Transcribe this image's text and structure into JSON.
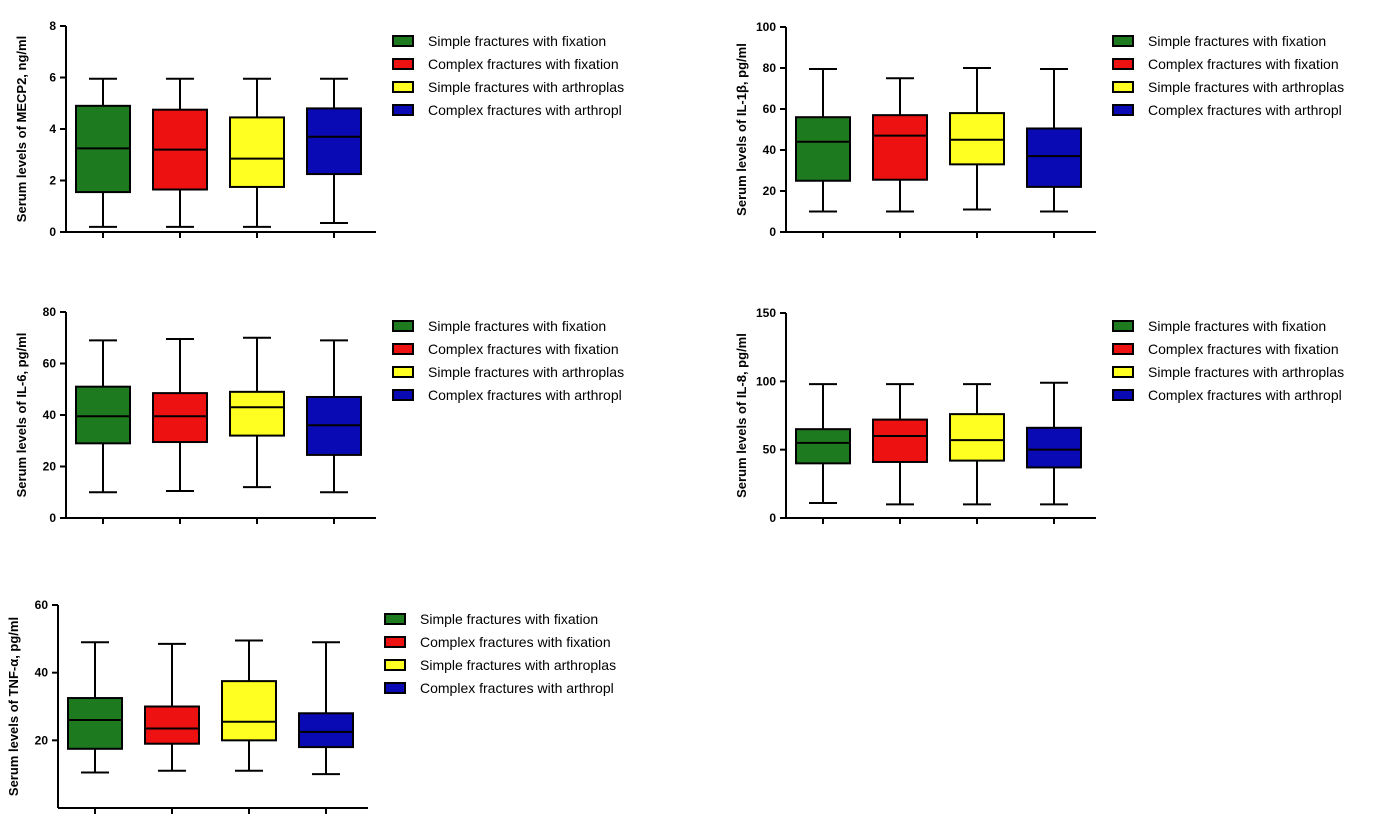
{
  "chart_data": [
    {
      "type": "box",
      "title": "",
      "ylabel": "Serum levels of MECP2, ng/ml",
      "ylim": [
        0,
        8
      ],
      "yticks": [
        0,
        2,
        4,
        6,
        8
      ],
      "grid": false,
      "legend_position": "right",
      "series": [
        {
          "name": "Simple fractures  with fixation",
          "color": "#1e7a1e",
          "min": 0.2,
          "q1": 1.55,
          "median": 3.25,
          "q3": 4.9,
          "max": 5.95
        },
        {
          "name": "Complex fractures with fixation",
          "color": "#ee1111",
          "min": 0.2,
          "q1": 1.65,
          "median": 3.2,
          "q3": 4.75,
          "max": 5.95
        },
        {
          "name": "Simple fractures with arthroplas",
          "color": "#ffff22",
          "min": 0.2,
          "q1": 1.75,
          "median": 2.85,
          "q3": 4.45,
          "max": 5.95
        },
        {
          "name": "Complex fractures with arthropl",
          "color": "#0a0ab4",
          "min": 0.35,
          "q1": 2.25,
          "median": 3.7,
          "q3": 4.8,
          "max": 5.95
        }
      ]
    },
    {
      "type": "box",
      "title": "",
      "ylabel": "Serum levels of  IL-1β, pg/ml",
      "ylim": [
        0,
        100
      ],
      "yticks": [
        0,
        20,
        40,
        60,
        80,
        100
      ],
      "grid": false,
      "legend_position": "right",
      "series": [
        {
          "name": "Simple fractures with fixation",
          "color": "#1e7a1e",
          "min": 10,
          "q1": 25,
          "median": 44,
          "q3": 56,
          "max": 79.5
        },
        {
          "name": "Complex fractures with fixation",
          "color": "#ee1111",
          "min": 10,
          "q1": 25.5,
          "median": 47,
          "q3": 57,
          "max": 75
        },
        {
          "name": "Simple fractures with arthroplas",
          "color": "#ffff22",
          "min": 11,
          "q1": 33,
          "median": 45,
          "q3": 58,
          "max": 80
        },
        {
          "name": "Complex fractures with arthropl",
          "color": "#0a0ab4",
          "min": 10,
          "q1": 22,
          "median": 37,
          "q3": 50.5,
          "max": 79.5
        }
      ]
    },
    {
      "type": "box",
      "title": "",
      "ylabel": "Serum levels of  IL-6, pg/ml",
      "ylim": [
        0,
        80
      ],
      "yticks": [
        0,
        20,
        40,
        60,
        80
      ],
      "grid": false,
      "legend_position": "right",
      "series": [
        {
          "name": "Simple fractures with fixation",
          "color": "#1e7a1e",
          "min": 10,
          "q1": 29,
          "median": 39.5,
          "q3": 51,
          "max": 69
        },
        {
          "name": "Complex fractures with fixation",
          "color": "#ee1111",
          "min": 10.5,
          "q1": 29.5,
          "median": 39.5,
          "q3": 48.5,
          "max": 69.5
        },
        {
          "name": "Simple fractures with arthroplas",
          "color": "#ffff22",
          "min": 12,
          "q1": 32,
          "median": 43,
          "q3": 49,
          "max": 70
        },
        {
          "name": "Complex fractures with arthropl",
          "color": "#0a0ab4",
          "min": 10,
          "q1": 24.5,
          "median": 36,
          "q3": 47,
          "max": 69
        }
      ]
    },
    {
      "type": "box",
      "title": "",
      "ylabel": "Serum levels of  IL-8, pg/ml",
      "ylim": [
        0,
        150
      ],
      "yticks": [
        0,
        50,
        100,
        150
      ],
      "grid": false,
      "legend_position": "right",
      "series": [
        {
          "name": "Simple fractures with fixation",
          "color": "#1e7a1e",
          "min": 11,
          "q1": 40,
          "median": 55,
          "q3": 65,
          "max": 98
        },
        {
          "name": "Complex fractures with fixation",
          "color": "#ee1111",
          "min": 10,
          "q1": 41,
          "median": 60,
          "q3": 72,
          "max": 98
        },
        {
          "name": "Simple fractures with arthroplas",
          "color": "#ffff22",
          "min": 10,
          "q1": 42,
          "median": 57,
          "q3": 76,
          "max": 98
        },
        {
          "name": "Complex fractures with arthropl",
          "color": "#0a0ab4",
          "min": 10,
          "q1": 37,
          "median": 50,
          "q3": 66,
          "max": 99
        }
      ]
    },
    {
      "type": "box",
      "title": "",
      "ylabel": "Serum levels of  TNF-α, pg/ml",
      "ylim": [
        0,
        60
      ],
      "yticks": [
        20,
        40,
        60
      ],
      "grid": false,
      "legend_position": "right",
      "series": [
        {
          "name": "Simple fractures with fixation",
          "color": "#1e7a1e",
          "min": 10.5,
          "q1": 17.5,
          "median": 26,
          "q3": 32.5,
          "max": 49
        },
        {
          "name": "Complex fractures with fixation",
          "color": "#ee1111",
          "min": 11,
          "q1": 19,
          "median": 23.5,
          "q3": 30,
          "max": 48.5
        },
        {
          "name": "Simple fractures with arthroplas",
          "color": "#ffff22",
          "min": 11,
          "q1": 20,
          "median": 25.5,
          "q3": 37.5,
          "max": 49.5
        },
        {
          "name": "Complex fractures with arthropl",
          "color": "#0a0ab4",
          "min": 10,
          "q1": 18,
          "median": 22.5,
          "q3": 28,
          "max": 49
        }
      ]
    }
  ]
}
